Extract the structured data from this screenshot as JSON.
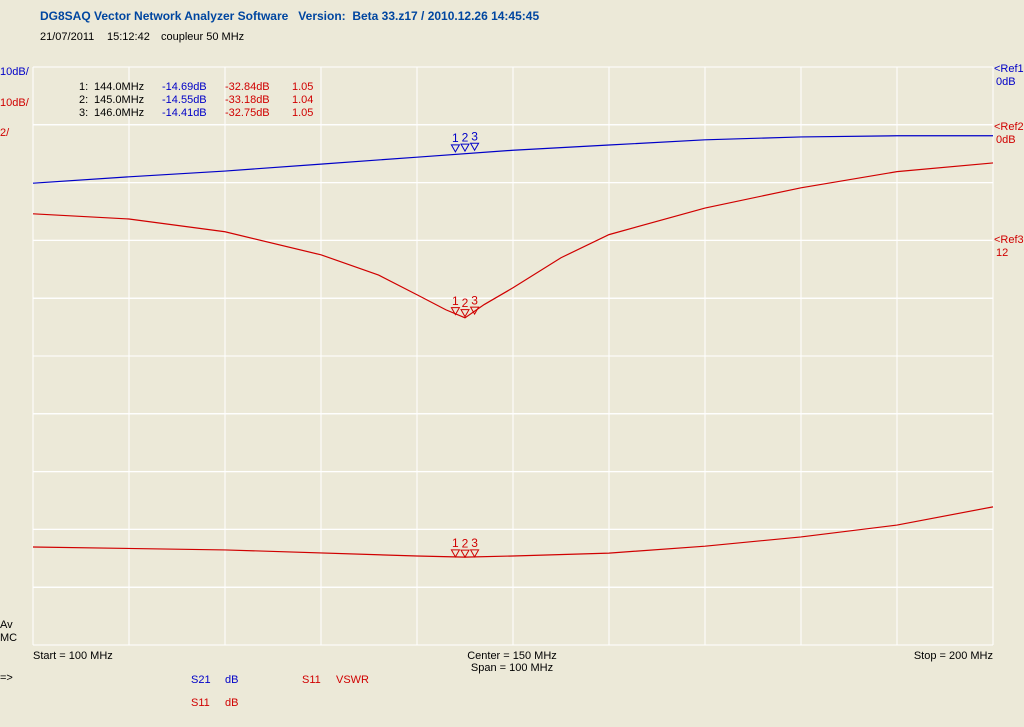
{
  "header": {
    "title": "DG8SAQ Vector Network Analyzer Software   Version:  Beta 33.z17 / 2010.12.26 14:45:45",
    "date": "21/07/2011",
    "time": "15:12:42",
    "note": "coupleur 50 MHz"
  },
  "side": {
    "av": "Av",
    "mc": "MC",
    "arrow": "=>"
  },
  "footer": {
    "start": "Start = 100 MHz",
    "center": "Center = 150 MHz",
    "span": "Span = 100 MHz",
    "stop": "Stop = 200 MHz"
  },
  "chart_data": {
    "type": "line",
    "xlim": [
      100,
      200
    ],
    "xticks": [
      100,
      110,
      120,
      130,
      140,
      150,
      160,
      170,
      180,
      190,
      200
    ],
    "ylim": [
      -100,
      0
    ],
    "yticks": [
      -100,
      -90,
      -80,
      -70,
      -60,
      -50,
      -40,
      -30,
      -20,
      -10,
      0
    ],
    "y2lim": [
      -90,
      10
    ],
    "y2ticks": [
      -90,
      -80,
      -70,
      -60,
      -50,
      -40,
      -30,
      -20,
      -10,
      0,
      10
    ],
    "y3lim": [
      -2,
      18
    ],
    "y3ticks": [
      -2,
      0,
      2,
      4,
      6,
      8,
      10,
      12,
      14,
      16,
      18
    ],
    "grid": true,
    "series": [
      {
        "name": "S21",
        "unit": "dB",
        "color": "#0000c8",
        "axis": "y",
        "scale": "10dB/",
        "ref": "<Ref1",
        "ref_label": "0dB",
        "x": [
          100,
          110,
          120,
          130,
          140,
          150,
          160,
          170,
          180,
          190,
          200
        ],
        "values": [
          -20.1,
          -19.0,
          -18.0,
          -16.8,
          -15.6,
          -14.4,
          -13.5,
          -12.6,
          -12.1,
          -11.9,
          -11.9
        ]
      },
      {
        "name": "S11",
        "unit": "dB",
        "color": "#d00000",
        "axis": "y2",
        "scale": "10dB/",
        "ref": "<Ref2",
        "ref_label": "0dB",
        "x": [
          100,
          110,
          120,
          130,
          136,
          140,
          143,
          145,
          147,
          150,
          155,
          160,
          170,
          180,
          190,
          200
        ],
        "values": [
          -15.4,
          -16.3,
          -18.5,
          -22.5,
          -26.0,
          -29.4,
          -32.0,
          -33.4,
          -31.1,
          -28.2,
          -23.0,
          -19.0,
          -14.4,
          -10.9,
          -8.1,
          -6.6
        ]
      },
      {
        "name": "S11",
        "unit": "VSWR",
        "color": "#d00000",
        "axis": "y3",
        "scale": "2/",
        "ref": "<Ref3",
        "ref_label": "12",
        "x": [
          100,
          120,
          140,
          145,
          150,
          160,
          170,
          180,
          190,
          200
        ],
        "values": [
          1.39,
          1.29,
          1.08,
          1.04,
          1.08,
          1.18,
          1.42,
          1.74,
          2.15,
          2.78
        ]
      }
    ],
    "markers": [
      {
        "row": "1:",
        "label": "1",
        "freq": 144,
        "freq_label": "144.0MHz",
        "s21": -14.69,
        "s21_label": "-14.69dB",
        "s11": -32.84,
        "s11_label": "-32.84dB",
        "vswr": 1.05
      },
      {
        "row": "2:",
        "label": "2",
        "freq": 145,
        "freq_label": "145.0MHz",
        "s21": -14.55,
        "s21_label": "-14.55dB",
        "s11": -33.18,
        "s11_label": "-33.18dB",
        "vswr": 1.04
      },
      {
        "row": "3:",
        "label": "3",
        "freq": 146,
        "freq_label": "146.0MHz",
        "s21": -14.41,
        "s21_label": "-14.41dB",
        "s11": -32.75,
        "s11_label": "-32.75dB",
        "vswr": 1.05
      }
    ]
  }
}
